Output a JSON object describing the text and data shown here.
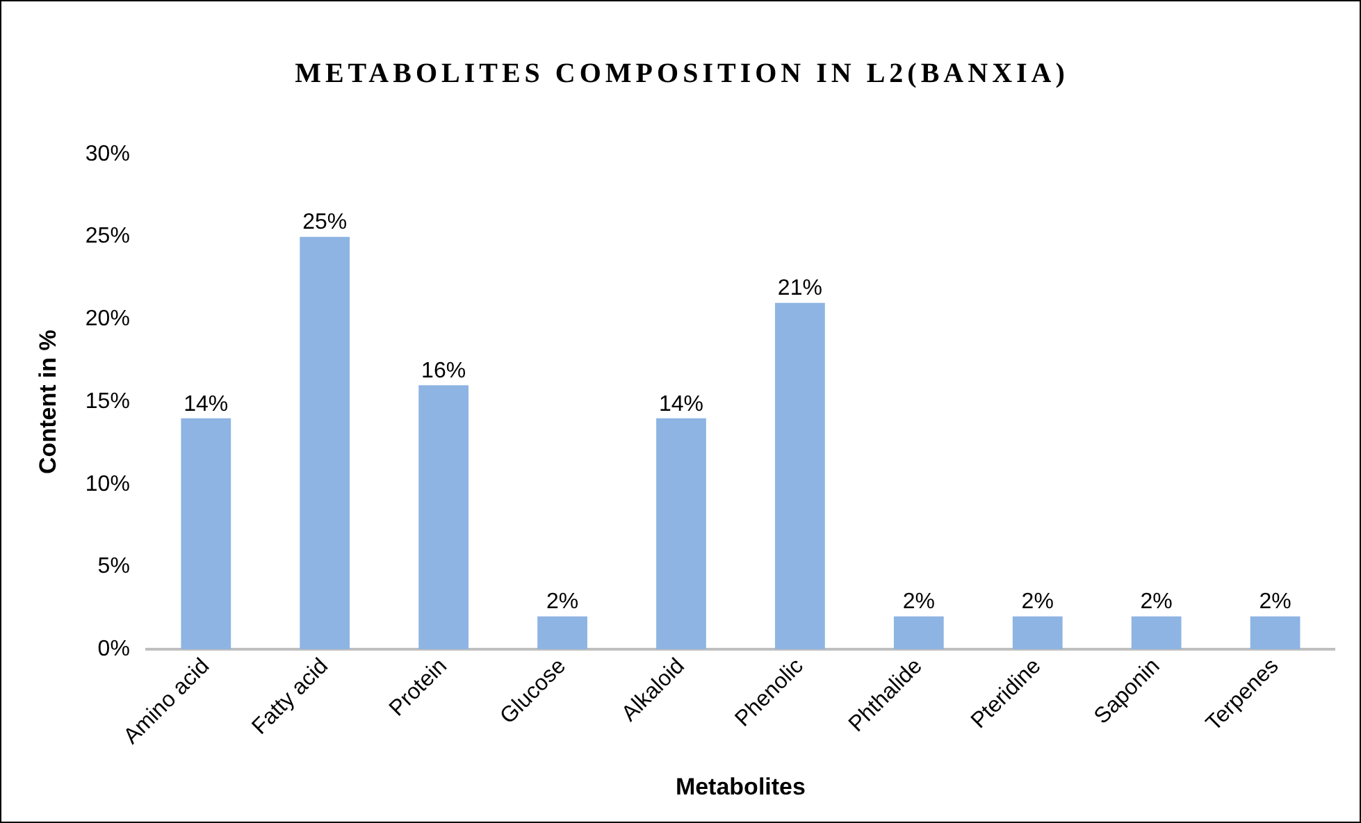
{
  "chart_data": {
    "type": "bar",
    "title": "METABOLITES COMPOSITION IN L2(BANXIA)",
    "xlabel": "Metabolites",
    "ylabel": "Content in %",
    "categories": [
      "Amino acid",
      "Fatty acid",
      "Protein",
      "Glucose",
      "Alkaloid",
      "Phenolic",
      "Phthalide",
      "Pteridine",
      "Saponin",
      "Terpenes"
    ],
    "values": [
      14,
      25,
      16,
      2,
      14,
      21,
      2,
      2,
      2,
      2
    ],
    "value_labels": [
      "14%",
      "25%",
      "16%",
      "2%",
      "14%",
      "21%",
      "2%",
      "2%",
      "2%",
      "2%"
    ],
    "color": "#8eb4e3",
    "ylim": [
      0,
      30
    ],
    "yticks": [
      {
        "value": 0,
        "label": "0%"
      },
      {
        "value": 5,
        "label": "5%"
      },
      {
        "value": 10,
        "label": "10%"
      },
      {
        "value": 15,
        "label": "15%"
      },
      {
        "value": 20,
        "label": "20%"
      },
      {
        "value": 25,
        "label": "25%"
      },
      {
        "value": 30,
        "label": "30%"
      }
    ],
    "grid": false,
    "legend": false
  }
}
